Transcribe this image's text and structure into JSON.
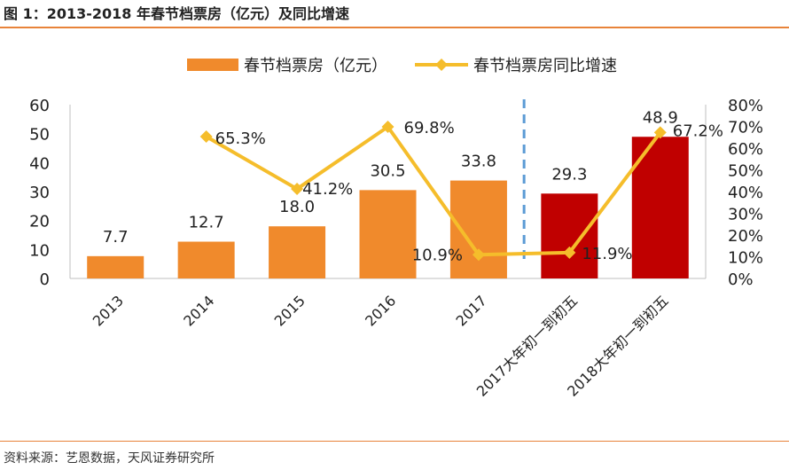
{
  "figure": {
    "title": "图 1：2013-2018 年春节档票房（亿元）及同比增速",
    "source": "资料来源：艺恩数据，天风证券研究所"
  },
  "chart_data": {
    "type": "bar",
    "categories": [
      "2013",
      "2014",
      "2015",
      "2016",
      "2017",
      "2017大年初一到初五",
      "2018大年初一到初五"
    ],
    "series": [
      {
        "name": "春节档票房（亿元）",
        "kind": "bar",
        "axis": "left",
        "values": [
          7.7,
          12.7,
          18.0,
          30.5,
          33.8,
          29.3,
          48.9
        ],
        "labels": [
          "7.7",
          "12.7",
          "18.0",
          "30.5",
          "33.8",
          "29.3",
          "48.9"
        ],
        "colors": [
          "#f08a2c",
          "#f08a2c",
          "#f08a2c",
          "#f08a2c",
          "#f08a2c",
          "#c00000",
          "#c00000"
        ]
      },
      {
        "name": "春节档票房同比增速",
        "kind": "line",
        "axis": "right",
        "values": [
          null,
          65.3,
          41.2,
          69.8,
          10.9,
          11.9,
          67.2
        ],
        "labels": [
          null,
          "65.3%",
          "41.2%",
          "69.8%",
          "10.9%",
          "11.9%",
          "67.2%"
        ],
        "color": "#f5bd2b"
      }
    ],
    "y_left": {
      "lim": [
        0,
        60
      ],
      "ticks": [
        "0",
        "10",
        "20",
        "30",
        "40",
        "50",
        "60"
      ]
    },
    "y_right": {
      "lim": [
        0,
        80
      ],
      "ticks": [
        "0%",
        "10%",
        "20%",
        "30%",
        "40%",
        "50%",
        "60%",
        "70%",
        "80%"
      ]
    },
    "divider_after_category": "2017",
    "divider_color": "#5b9bd5",
    "legend_position": "top-center",
    "grid": false
  }
}
